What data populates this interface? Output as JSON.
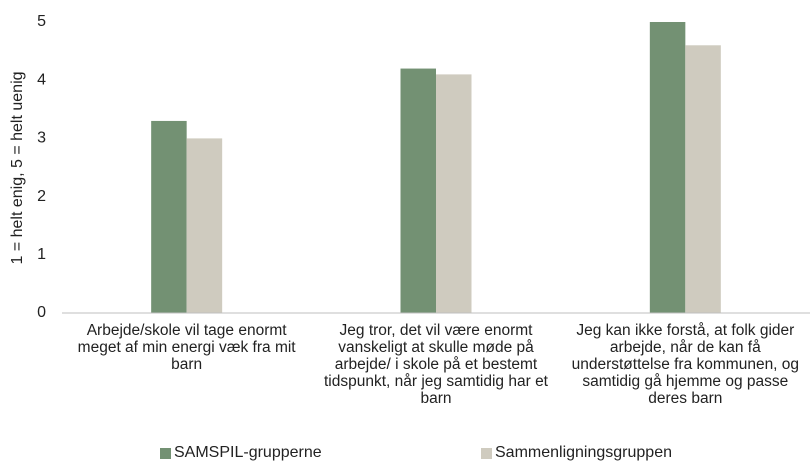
{
  "chart_data": {
    "type": "bar",
    "y_label": "1 = helt enig, 5 = helt uenig",
    "categories": [
      "Arbejde/skole vil tage enormt meget af min energi væk fra mit barn",
      "Jeg tror, det vil være enormt vanskeligt at skulle møde på arbejde/ i skole på et bestemt tidspunkt, når jeg samtidig har et barn",
      "Jeg kan ikke forstå, at folk gider arbejde, når de kan få understøttelse fra kommunen, og samtidig gå hjemme og passe deres barn"
    ],
    "series": [
      {
        "name": "SAMSPIL-grupperne",
        "color": "#739173",
        "values": [
          3.3,
          4.2,
          5.0
        ]
      },
      {
        "name": "Sammenligningsgruppen",
        "color": "#cfcbbf",
        "values": [
          3.0,
          4.1,
          4.6
        ]
      }
    ],
    "ylim": [
      0,
      5
    ],
    "yticks": [
      0,
      1,
      2,
      3,
      4,
      5
    ],
    "grid": false
  }
}
